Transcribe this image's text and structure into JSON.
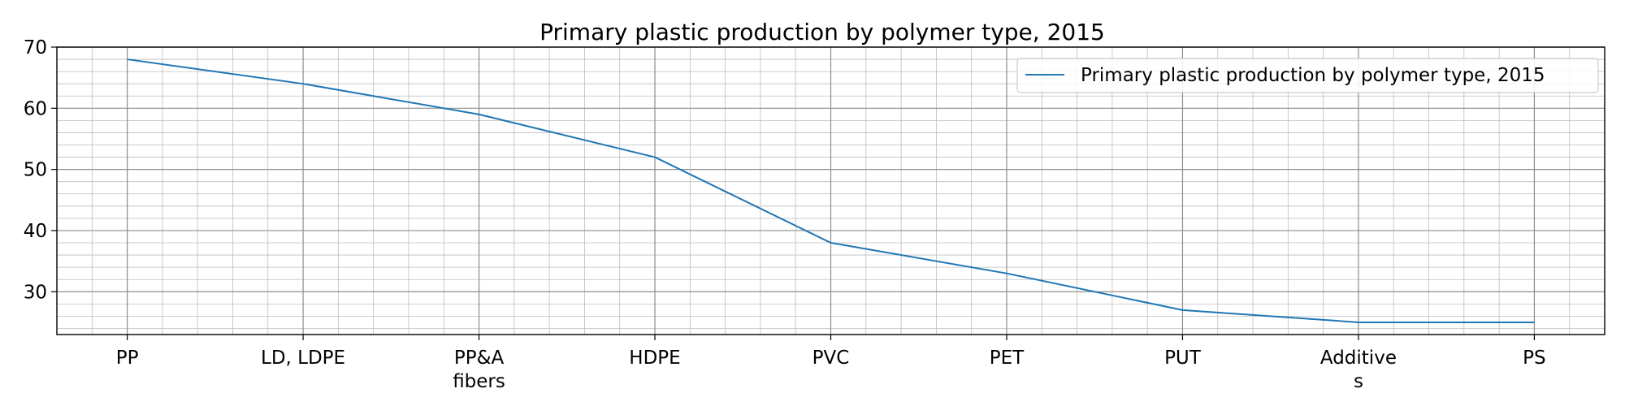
{
  "chart_data": {
    "type": "line",
    "title": "Primary plastic production by polymer type, 2015",
    "xlabel": "",
    "ylabel": "",
    "categories": [
      "PP",
      "LD, LDPE",
      "PP&A fibers",
      "HDPE",
      "PVC",
      "PET",
      "PUT",
      "Additives",
      "PS"
    ],
    "category_display": [
      [
        "PP"
      ],
      [
        "LD, LDPE"
      ],
      [
        "PP&A",
        "fibers"
      ],
      [
        "HDPE"
      ],
      [
        "PVC"
      ],
      [
        "PET"
      ],
      [
        "PUT"
      ],
      [
        "Additive",
        "s"
      ],
      [
        "PS"
      ]
    ],
    "series": [
      {
        "name": "Primary plastic production by polymer type, 2015",
        "values": [
          68,
          64,
          59,
          52,
          38,
          33,
          27,
          25,
          25
        ],
        "color": "#1f77b4"
      }
    ],
    "ylim": [
      23,
      70
    ],
    "yticks": [
      30,
      40,
      50,
      60,
      70
    ],
    "grid": true,
    "legend": "top-right"
  }
}
